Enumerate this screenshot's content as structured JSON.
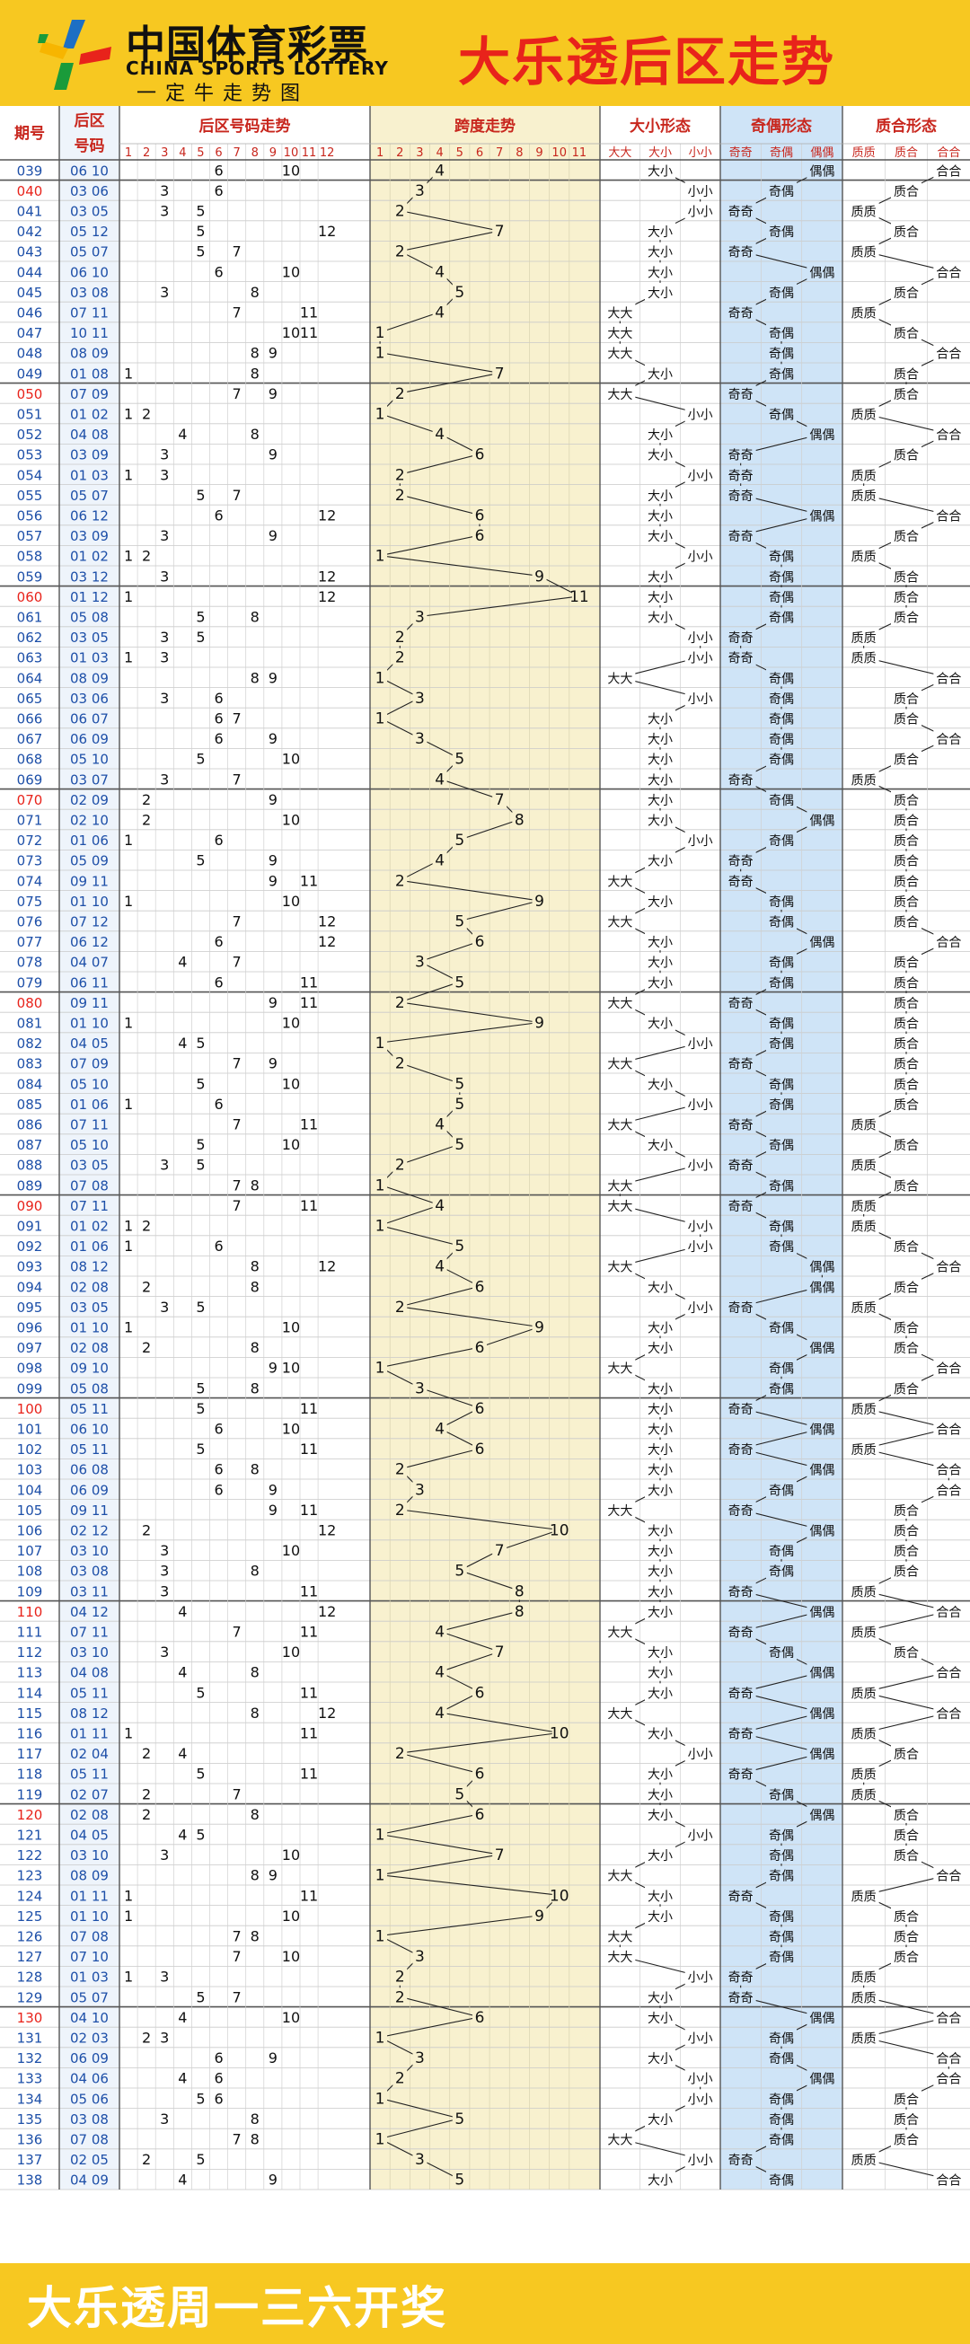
{
  "header": {
    "logo_cn": "中国体育彩票",
    "logo_en": "CHINA SPORTS LOTTERY",
    "slogan": "一定牛走势图",
    "title": "大乐透后区走势"
  },
  "footer": {
    "text": "大乐透周一三六开奖"
  },
  "colors": {
    "accent_red": "#e8231b",
    "period_blue": "#1d4fa8",
    "band_yellow": "#f8f1cf",
    "band_blue": "#cfe4f7",
    "gold": "#f7c821"
  },
  "table": {
    "headers": {
      "period": "期号",
      "number": "后区号码",
      "trend": "后区号码走势",
      "span": "跨度走势",
      "size": "大小形态",
      "parity": "奇偶形态",
      "prime": "质合形态"
    },
    "trend_cols": [
      "1",
      "2",
      "3",
      "4",
      "5",
      "6",
      "7",
      "8",
      "9",
      "10",
      "11",
      "12"
    ],
    "span_cols": [
      "1",
      "2",
      "3",
      "4",
      "5",
      "6",
      "7",
      "8",
      "9",
      "10",
      "11"
    ],
    "size_cols": [
      "大大",
      "大小",
      "小小"
    ],
    "parity_cols": [
      "奇奇",
      "奇偶",
      "偶偶"
    ],
    "prime_cols": [
      "质质",
      "质合",
      "合合"
    ]
  },
  "chart_data": {
    "type": "table",
    "title": "大乐透后区走势",
    "columns": [
      "期号",
      "后区号码",
      "跨度",
      "大小形态",
      "奇偶形态",
      "质合形态"
    ],
    "rows": [
      [
        "039",
        "06 10",
        4,
        "大小",
        "偶偶",
        "合合"
      ],
      [
        "040",
        "03 06",
        3,
        "小小",
        "奇偶",
        "质合"
      ],
      [
        "041",
        "03 05",
        2,
        "小小",
        "奇奇",
        "质质"
      ],
      [
        "042",
        "05 12",
        7,
        "大小",
        "奇偶",
        "质合"
      ],
      [
        "043",
        "05 07",
        2,
        "大小",
        "奇奇",
        "质质"
      ],
      [
        "044",
        "06 10",
        4,
        "大小",
        "偶偶",
        "合合"
      ],
      [
        "045",
        "03 08",
        5,
        "大小",
        "奇偶",
        "质合"
      ],
      [
        "046",
        "07 11",
        4,
        "大大",
        "奇奇",
        "质质"
      ],
      [
        "047",
        "10 11",
        1,
        "大大",
        "奇偶",
        "质合"
      ],
      [
        "048",
        "08 09",
        1,
        "大大",
        "奇偶",
        "合合"
      ],
      [
        "049",
        "01 08",
        7,
        "大小",
        "奇偶",
        "质合"
      ],
      [
        "050",
        "07 09",
        2,
        "大大",
        "奇奇",
        "质合"
      ],
      [
        "051",
        "01 02",
        1,
        "小小",
        "奇偶",
        "质质"
      ],
      [
        "052",
        "04 08",
        4,
        "大小",
        "偶偶",
        "合合"
      ],
      [
        "053",
        "03 09",
        6,
        "大小",
        "奇奇",
        "质合"
      ],
      [
        "054",
        "01 03",
        2,
        "小小",
        "奇奇",
        "质质"
      ],
      [
        "055",
        "05 07",
        2,
        "大小",
        "奇奇",
        "质质"
      ],
      [
        "056",
        "06 12",
        6,
        "大小",
        "偶偶",
        "合合"
      ],
      [
        "057",
        "03 09",
        6,
        "大小",
        "奇奇",
        "质合"
      ],
      [
        "058",
        "01 02",
        1,
        "小小",
        "奇偶",
        "质质"
      ],
      [
        "059",
        "03 12",
        9,
        "大小",
        "奇偶",
        "质合"
      ],
      [
        "060",
        "01 12",
        11,
        "大小",
        "奇偶",
        "质合"
      ],
      [
        "061",
        "05 08",
        3,
        "大小",
        "奇偶",
        "质合"
      ],
      [
        "062",
        "03 05",
        2,
        "小小",
        "奇奇",
        "质质"
      ],
      [
        "063",
        "01 03",
        2,
        "小小",
        "奇奇",
        "质质"
      ],
      [
        "064",
        "08 09",
        1,
        "大大",
        "奇偶",
        "合合"
      ],
      [
        "065",
        "03 06",
        3,
        "小小",
        "奇偶",
        "质合"
      ],
      [
        "066",
        "06 07",
        1,
        "大小",
        "奇偶",
        "质合"
      ],
      [
        "067",
        "06 09",
        3,
        "大小",
        "奇偶",
        "合合"
      ],
      [
        "068",
        "05 10",
        5,
        "大小",
        "奇偶",
        "质合"
      ],
      [
        "069",
        "03 07",
        4,
        "大小",
        "奇奇",
        "质质"
      ],
      [
        "070",
        "02 09",
        7,
        "大小",
        "奇偶",
        "质合"
      ],
      [
        "071",
        "02 10",
        8,
        "大小",
        "偶偶",
        "质合"
      ],
      [
        "072",
        "01 06",
        5,
        "小小",
        "奇偶",
        "质合"
      ],
      [
        "073",
        "05 09",
        4,
        "大小",
        "奇奇",
        "质合"
      ],
      [
        "074",
        "09 11",
        2,
        "大大",
        "奇奇",
        "质合"
      ],
      [
        "075",
        "01 10",
        9,
        "大小",
        "奇偶",
        "质合"
      ],
      [
        "076",
        "07 12",
        5,
        "大大",
        "奇偶",
        "质合"
      ],
      [
        "077",
        "06 12",
        6,
        "大小",
        "偶偶",
        "合合"
      ],
      [
        "078",
        "04 07",
        3,
        "大小",
        "奇偶",
        "质合"
      ],
      [
        "079",
        "06 11",
        5,
        "大小",
        "奇偶",
        "质合"
      ],
      [
        "080",
        "09 11",
        2,
        "大大",
        "奇奇",
        "质合"
      ],
      [
        "081",
        "01 10",
        9,
        "大小",
        "奇偶",
        "质合"
      ],
      [
        "082",
        "04 05",
        1,
        "小小",
        "奇偶",
        "质合"
      ],
      [
        "083",
        "07 09",
        2,
        "大大",
        "奇奇",
        "质合"
      ],
      [
        "084",
        "05 10",
        5,
        "大小",
        "奇偶",
        "质合"
      ],
      [
        "085",
        "01 06",
        5,
        "小小",
        "奇偶",
        "质合"
      ],
      [
        "086",
        "07 11",
        4,
        "大大",
        "奇奇",
        "质质"
      ],
      [
        "087",
        "05 10",
        5,
        "大小",
        "奇偶",
        "质合"
      ],
      [
        "088",
        "03 05",
        2,
        "小小",
        "奇奇",
        "质质"
      ],
      [
        "089",
        "07 08",
        1,
        "大大",
        "奇偶",
        "质合"
      ],
      [
        "090",
        "07 11",
        4,
        "大大",
        "奇奇",
        "质质"
      ],
      [
        "091",
        "01 02",
        1,
        "小小",
        "奇偶",
        "质质"
      ],
      [
        "092",
        "01 06",
        5,
        "小小",
        "奇偶",
        "质合"
      ],
      [
        "093",
        "08 12",
        4,
        "大大",
        "偶偶",
        "合合"
      ],
      [
        "094",
        "02 08",
        6,
        "大小",
        "偶偶",
        "质合"
      ],
      [
        "095",
        "03 05",
        2,
        "小小",
        "奇奇",
        "质质"
      ],
      [
        "096",
        "01 10",
        9,
        "大小",
        "奇偶",
        "质合"
      ],
      [
        "097",
        "02 08",
        6,
        "大小",
        "偶偶",
        "质合"
      ],
      [
        "098",
        "09 10",
        1,
        "大大",
        "奇偶",
        "合合"
      ],
      [
        "099",
        "05 08",
        3,
        "大小",
        "奇偶",
        "质合"
      ],
      [
        "100",
        "05 11",
        6,
        "大小",
        "奇奇",
        "质质"
      ],
      [
        "101",
        "06 10",
        4,
        "大小",
        "偶偶",
        "合合"
      ],
      [
        "102",
        "05 11",
        6,
        "大小",
        "奇奇",
        "质质"
      ],
      [
        "103",
        "06 08",
        2,
        "大小",
        "偶偶",
        "合合"
      ],
      [
        "104",
        "06 09",
        3,
        "大小",
        "奇偶",
        "合合"
      ],
      [
        "105",
        "09 11",
        2,
        "大大",
        "奇奇",
        "质合"
      ],
      [
        "106",
        "02 12",
        10,
        "大小",
        "偶偶",
        "质合"
      ],
      [
        "107",
        "03 10",
        7,
        "大小",
        "奇偶",
        "质合"
      ],
      [
        "108",
        "03 08",
        5,
        "大小",
        "奇偶",
        "质合"
      ],
      [
        "109",
        "03 11",
        8,
        "大小",
        "奇奇",
        "质质"
      ],
      [
        "110",
        "04 12",
        8,
        "大小",
        "偶偶",
        "合合"
      ],
      [
        "111",
        "07 11",
        4,
        "大大",
        "奇奇",
        "质质"
      ],
      [
        "112",
        "03 10",
        7,
        "大小",
        "奇偶",
        "质合"
      ],
      [
        "113",
        "04 08",
        4,
        "大小",
        "偶偶",
        "合合"
      ],
      [
        "114",
        "05 11",
        6,
        "大小",
        "奇奇",
        "质质"
      ],
      [
        "115",
        "08 12",
        4,
        "大大",
        "偶偶",
        "合合"
      ],
      [
        "116",
        "01 11",
        10,
        "大小",
        "奇奇",
        "质质"
      ],
      [
        "117",
        "02 04",
        2,
        "小小",
        "偶偶",
        "质合"
      ],
      [
        "118",
        "05 11",
        6,
        "大小",
        "奇奇",
        "质质"
      ],
      [
        "119",
        "02 07",
        5,
        "大小",
        "奇偶",
        "质质"
      ],
      [
        "120",
        "02 08",
        6,
        "大小",
        "偶偶",
        "质合"
      ],
      [
        "121",
        "04 05",
        1,
        "小小",
        "奇偶",
        "质合"
      ],
      [
        "122",
        "03 10",
        7,
        "大小",
        "奇偶",
        "质合"
      ],
      [
        "123",
        "08 09",
        1,
        "大大",
        "奇偶",
        "合合"
      ],
      [
        "124",
        "01 11",
        10,
        "大小",
        "奇奇",
        "质质"
      ],
      [
        "125",
        "01 10",
        9,
        "大小",
        "奇偶",
        "质合"
      ],
      [
        "126",
        "07 08",
        1,
        "大大",
        "奇偶",
        "质合"
      ],
      [
        "127",
        "07 10",
        3,
        "大大",
        "奇偶",
        "质合"
      ],
      [
        "128",
        "01 03",
        2,
        "小小",
        "奇奇",
        "质质"
      ],
      [
        "129",
        "05 07",
        2,
        "大小",
        "奇奇",
        "质质"
      ],
      [
        "130",
        "04 10",
        6,
        "大小",
        "偶偶",
        "合合"
      ],
      [
        "131",
        "02 03",
        1,
        "小小",
        "奇偶",
        "质质"
      ],
      [
        "132",
        "06 09",
        3,
        "大小",
        "奇偶",
        "合合"
      ],
      [
        "133",
        "04 06",
        2,
        "小小",
        "偶偶",
        "合合"
      ],
      [
        "134",
        "05 06",
        1,
        "小小",
        "奇偶",
        "质合"
      ],
      [
        "135",
        "03 08",
        5,
        "大小",
        "奇偶",
        "质合"
      ],
      [
        "136",
        "07 08",
        1,
        "大大",
        "奇偶",
        "质合"
      ],
      [
        "137",
        "02 05",
        3,
        "小小",
        "奇奇",
        "质质"
      ],
      [
        "138",
        "04 09",
        5,
        "大小",
        "奇偶",
        "合合"
      ]
    ]
  }
}
